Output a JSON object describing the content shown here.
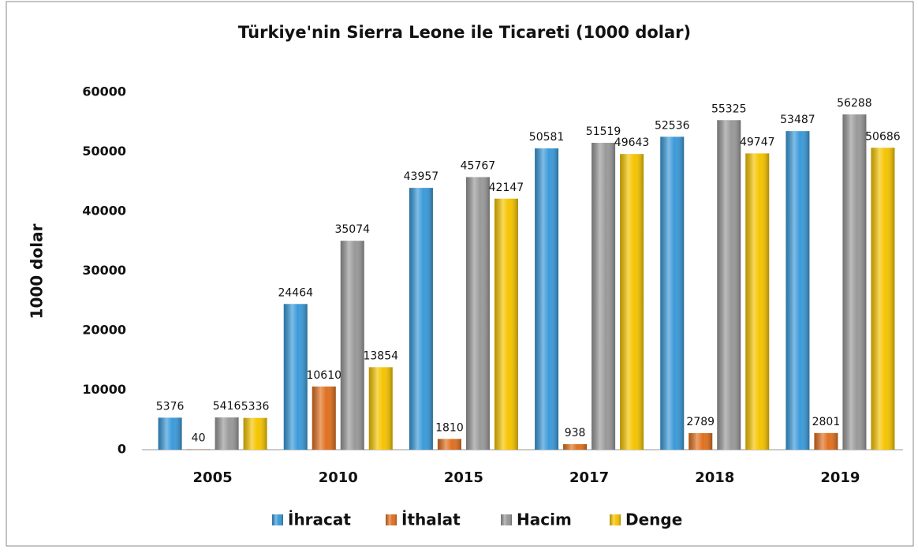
{
  "chart_data": {
    "type": "bar",
    "title": "Türkiye'nin Sierra Leone ile Ticareti (1000 dolar)",
    "y_label": "1000 dolar",
    "categories": [
      "2005",
      "2010",
      "2015",
      "2017",
      "2018",
      "2019"
    ],
    "series": [
      {
        "name": "İhracat",
        "color": "#3a9ad9",
        "values": [
          5376,
          24464,
          43957,
          50581,
          52536,
          53487
        ]
      },
      {
        "name": "İthalat",
        "color": "#e0701f",
        "values": [
          40,
          10610,
          1810,
          938,
          2789,
          2801
        ]
      },
      {
        "name": "Hacim",
        "color": "#999999",
        "values": [
          5416,
          35074,
          45767,
          51519,
          55325,
          56288
        ]
      },
      {
        "name": "Denge",
        "color": "#f5c400",
        "values": [
          5336,
          13854,
          42147,
          49643,
          49747,
          50686
        ]
      }
    ],
    "ylim": [
      0,
      60000
    ],
    "yticks": [
      0,
      10000,
      20000,
      30000,
      40000,
      50000,
      60000
    ],
    "legend": "bottom"
  }
}
